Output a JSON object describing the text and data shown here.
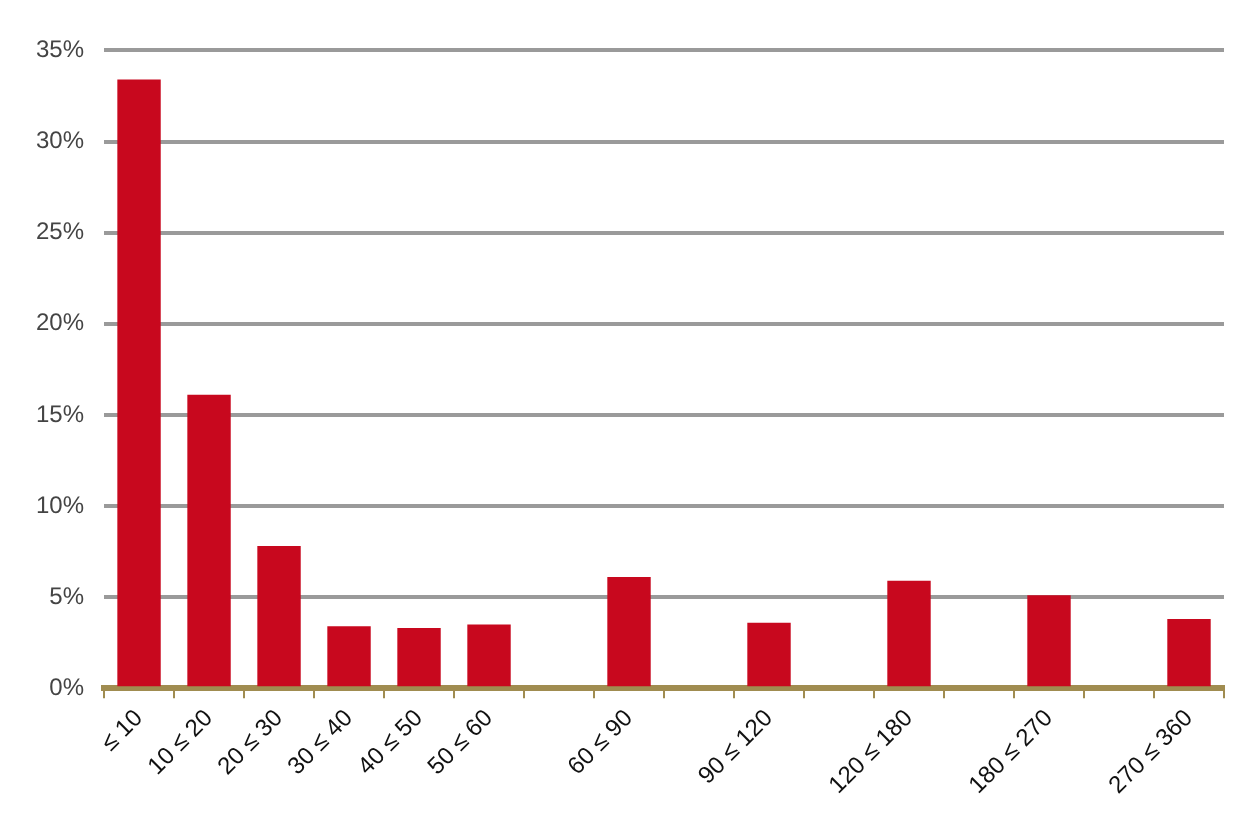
{
  "chart_data": {
    "type": "bar",
    "categories": [
      "≤ 10",
      "10 ≤ 20",
      "20 ≤ 30",
      "30 ≤ 40",
      "40 ≤ 50",
      "50 ≤ 60",
      null,
      "60 ≤ 90",
      null,
      "90 ≤ 120",
      null,
      "120 ≤ 180",
      null,
      "180 ≤ 270",
      null,
      "270 ≤ 360"
    ],
    "values": [
      33.4,
      16.1,
      7.8,
      3.4,
      3.3,
      3.5,
      null,
      6.1,
      null,
      3.6,
      null,
      5.9,
      null,
      5.1,
      null,
      3.8
    ],
    "color": "#c8081e",
    "ylim": [
      0,
      35
    ],
    "yticks": [
      {
        "value": 0,
        "label": "0%"
      },
      {
        "value": 5,
        "label": "5%"
      },
      {
        "value": 10,
        "label": "10%"
      },
      {
        "value": 15,
        "label": "15%"
      },
      {
        "value": 20,
        "label": "20%"
      },
      {
        "value": 25,
        "label": "25%"
      },
      {
        "value": 30,
        "label": "30%"
      },
      {
        "value": 35,
        "label": "35%"
      }
    ],
    "grid": "y",
    "legend": false
  }
}
